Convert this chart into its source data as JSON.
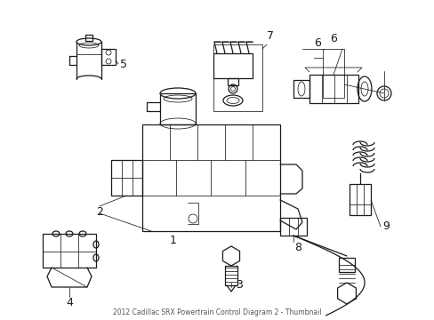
{
  "background_color": "#ffffff",
  "line_color": "#1a1a1a",
  "lw": 0.9,
  "tlw": 0.55,
  "fig_width": 4.89,
  "fig_height": 3.6,
  "dpi": 100
}
